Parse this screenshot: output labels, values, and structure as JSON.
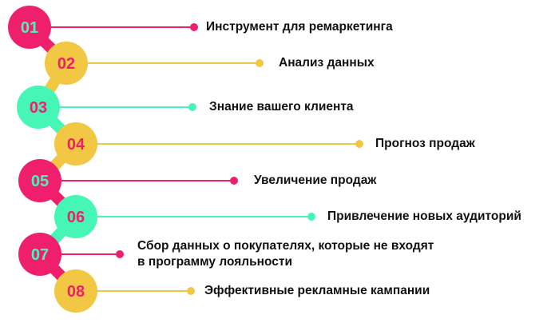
{
  "colors": {
    "pink": "#f01f6e",
    "yellow": "#f2c744",
    "green": "#45f6b6"
  },
  "steps": [
    {
      "number": "01",
      "label": "Инструмент для ремаркетинга",
      "color": "pink"
    },
    {
      "number": "02",
      "label": "Анализ данных",
      "color": "yellow"
    },
    {
      "number": "03",
      "label": "Знание вашего клиента",
      "color": "green"
    },
    {
      "number": "04",
      "label": "Прогноз продаж",
      "color": "yellow"
    },
    {
      "number": "05",
      "label": "Увеличение продаж",
      "color": "pink"
    },
    {
      "number": "06",
      "label": "Привлечение новых аудиторий",
      "color": "green"
    },
    {
      "number": "07",
      "label": "Сбор данных о покупателях, которые не входят\nв программу лояльности",
      "color": "pink"
    },
    {
      "number": "08",
      "label": "Эффективные рекламные кампании",
      "color": "yellow"
    }
  ]
}
